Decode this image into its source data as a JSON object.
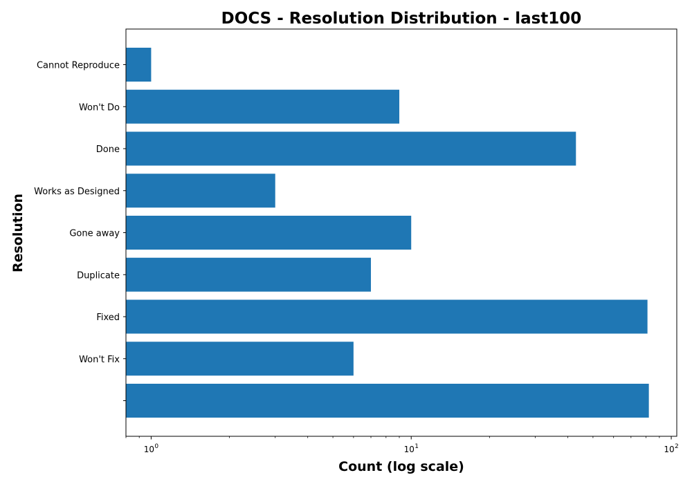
{
  "chart_data": {
    "type": "bar",
    "orientation": "horizontal",
    "title": "DOCS - Resolution Distribution - last100",
    "xlabel": "Count (log scale)",
    "ylabel": "Resolution",
    "xscale": "log",
    "xlim": [
      0.8,
      105
    ],
    "x_ticks": [
      {
        "value": 1,
        "base": "10",
        "exp": "0"
      },
      {
        "value": 10,
        "base": "10",
        "exp": "1"
      },
      {
        "value": 100,
        "base": "10",
        "exp": "2"
      }
    ],
    "categories": [
      "Cannot Reproduce",
      "Won't Do",
      "Done",
      "Works as Designed",
      "Gone away",
      "Duplicate",
      "Fixed",
      "Won't Fix",
      ""
    ],
    "values": [
      1,
      9,
      43,
      3,
      10,
      7,
      81,
      6,
      82
    ],
    "bar_color": "#1f77b4",
    "grid": false,
    "legend": "none"
  }
}
